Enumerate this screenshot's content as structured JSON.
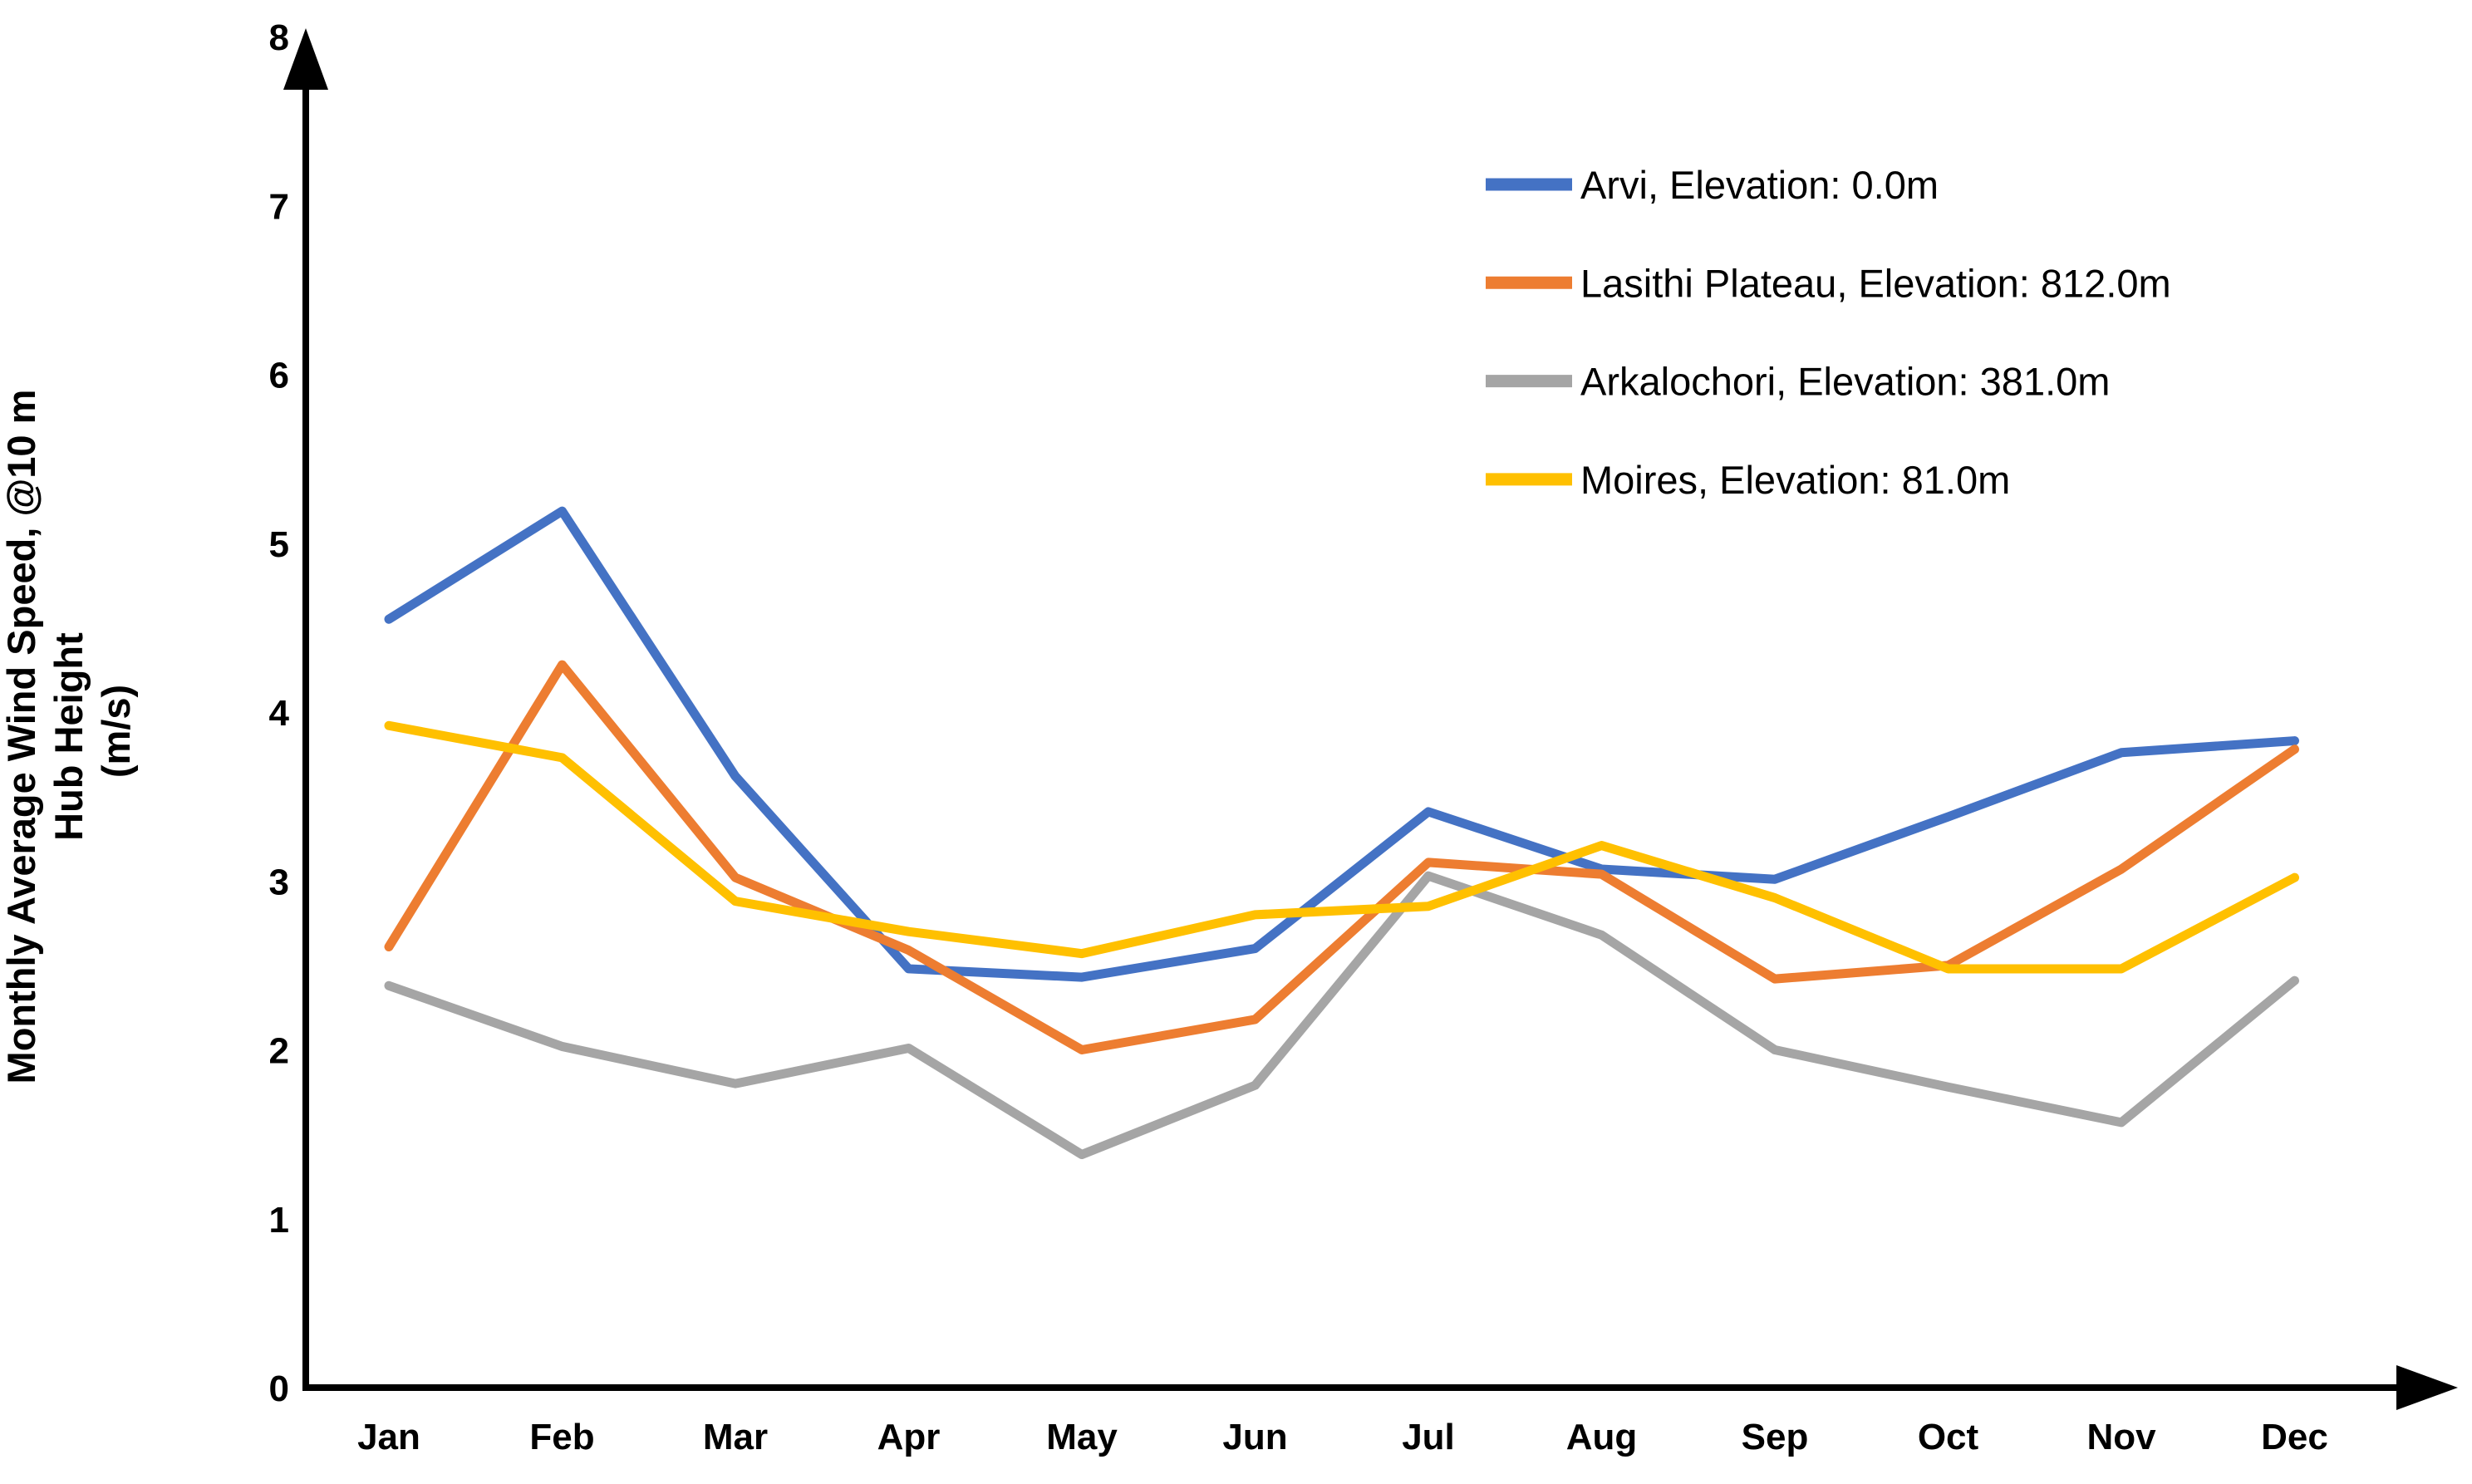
{
  "chart_data": {
    "type": "line",
    "title": "",
    "ylabel_lines": [
      "Monthly Average Wind Speed, @10 m",
      "Hub Height",
      "(m/s)"
    ],
    "xlabel": "",
    "ylim": [
      0,
      8
    ],
    "yticks": [
      "0",
      "1",
      "2",
      "3",
      "4",
      "5",
      "6",
      "7",
      "8"
    ],
    "grid": false,
    "legend_position": "top-right",
    "categories": [
      "Jan",
      "Feb",
      "Mar",
      "Apr",
      "May",
      "Jun",
      "Jul",
      "Aug",
      "Sep",
      "Oct",
      "Nov",
      "Dec"
    ],
    "series": [
      {
        "name": "Arvi, Elevation: 0.0m",
        "color": "#4472C4",
        "values": [
          4.55,
          5.19,
          3.62,
          2.48,
          2.43,
          2.6,
          3.41,
          3.07,
          3.01,
          3.38,
          3.76,
          3.83
        ]
      },
      {
        "name": "Lasithi Plateau, Elevation: 812.0m",
        "color": "#ED7D31",
        "values": [
          2.61,
          4.28,
          3.02,
          2.59,
          2.0,
          2.18,
          3.11,
          3.04,
          2.42,
          2.5,
          3.07,
          3.78
        ]
      },
      {
        "name": "Arkalochori, Elevation: 381.0m",
        "color": "#A5A5A5",
        "values": [
          2.38,
          2.02,
          1.8,
          2.01,
          1.38,
          1.79,
          3.03,
          2.68,
          2.0,
          1.78,
          1.57,
          2.41
        ]
      },
      {
        "name": "Moires, Elevation: 81.0m",
        "color": "#FFC000",
        "values": [
          3.92,
          3.73,
          2.88,
          2.7,
          2.57,
          2.8,
          2.85,
          3.21,
          2.9,
          2.48,
          2.48,
          3.02
        ]
      }
    ]
  }
}
